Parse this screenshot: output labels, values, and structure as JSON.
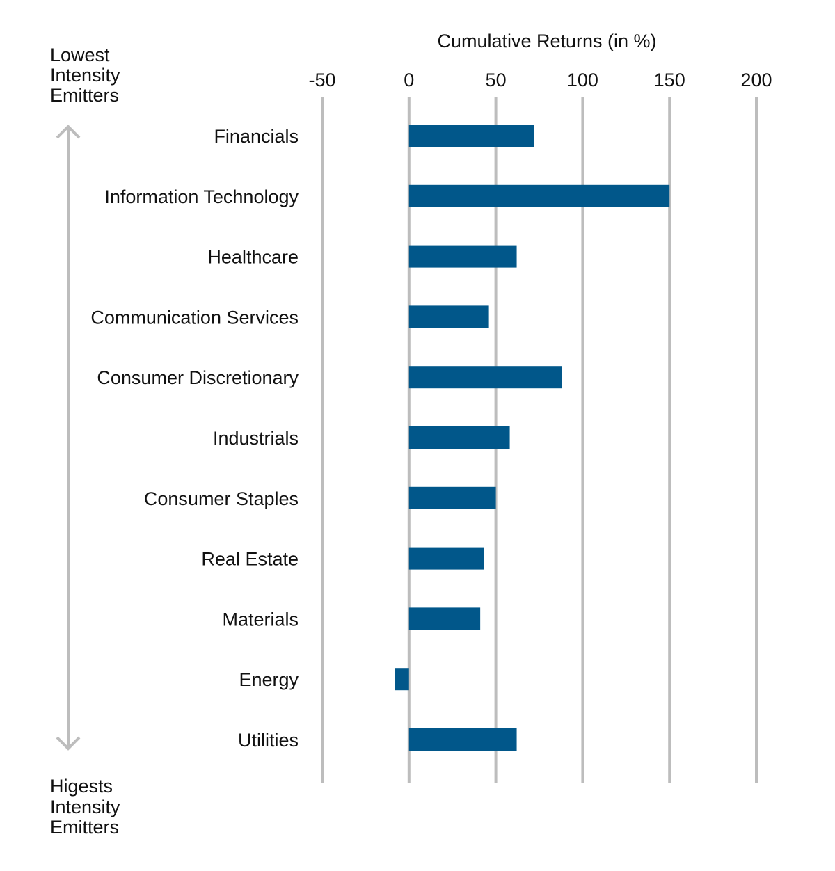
{
  "chart_data": {
    "type": "bar",
    "orientation": "horizontal",
    "title": "Cumulative Returns (in %)",
    "xlabel": "Cumulative Returns (in %)",
    "ylabel": "",
    "xlim": [
      -50,
      200
    ],
    "x_ticks": [
      -50,
      0,
      50,
      100,
      150,
      200
    ],
    "x_tick_labels": [
      "-50",
      "0",
      "50",
      "100",
      "150",
      "200"
    ],
    "grid": true,
    "categories": [
      "Financials",
      "Information Technology",
      "Healthcare",
      "Communication Services",
      "Consumer Discretionary",
      "Industrials",
      "Consumer Staples",
      "Real Estate",
      "Materials",
      "Energy",
      "Utilities"
    ],
    "values": [
      72,
      150,
      62,
      46,
      88,
      58,
      50,
      43,
      41,
      -8,
      62
    ],
    "top_annotation": [
      "Lowest",
      "Intensity",
      "Emitters"
    ],
    "bottom_annotation": [
      "Higests",
      "Intensity",
      "Emitters"
    ]
  },
  "colors": {
    "bar": "#01578a",
    "grid": "#bdbdbd",
    "arrow": "#bdbdbd",
    "text": "#111111"
  }
}
